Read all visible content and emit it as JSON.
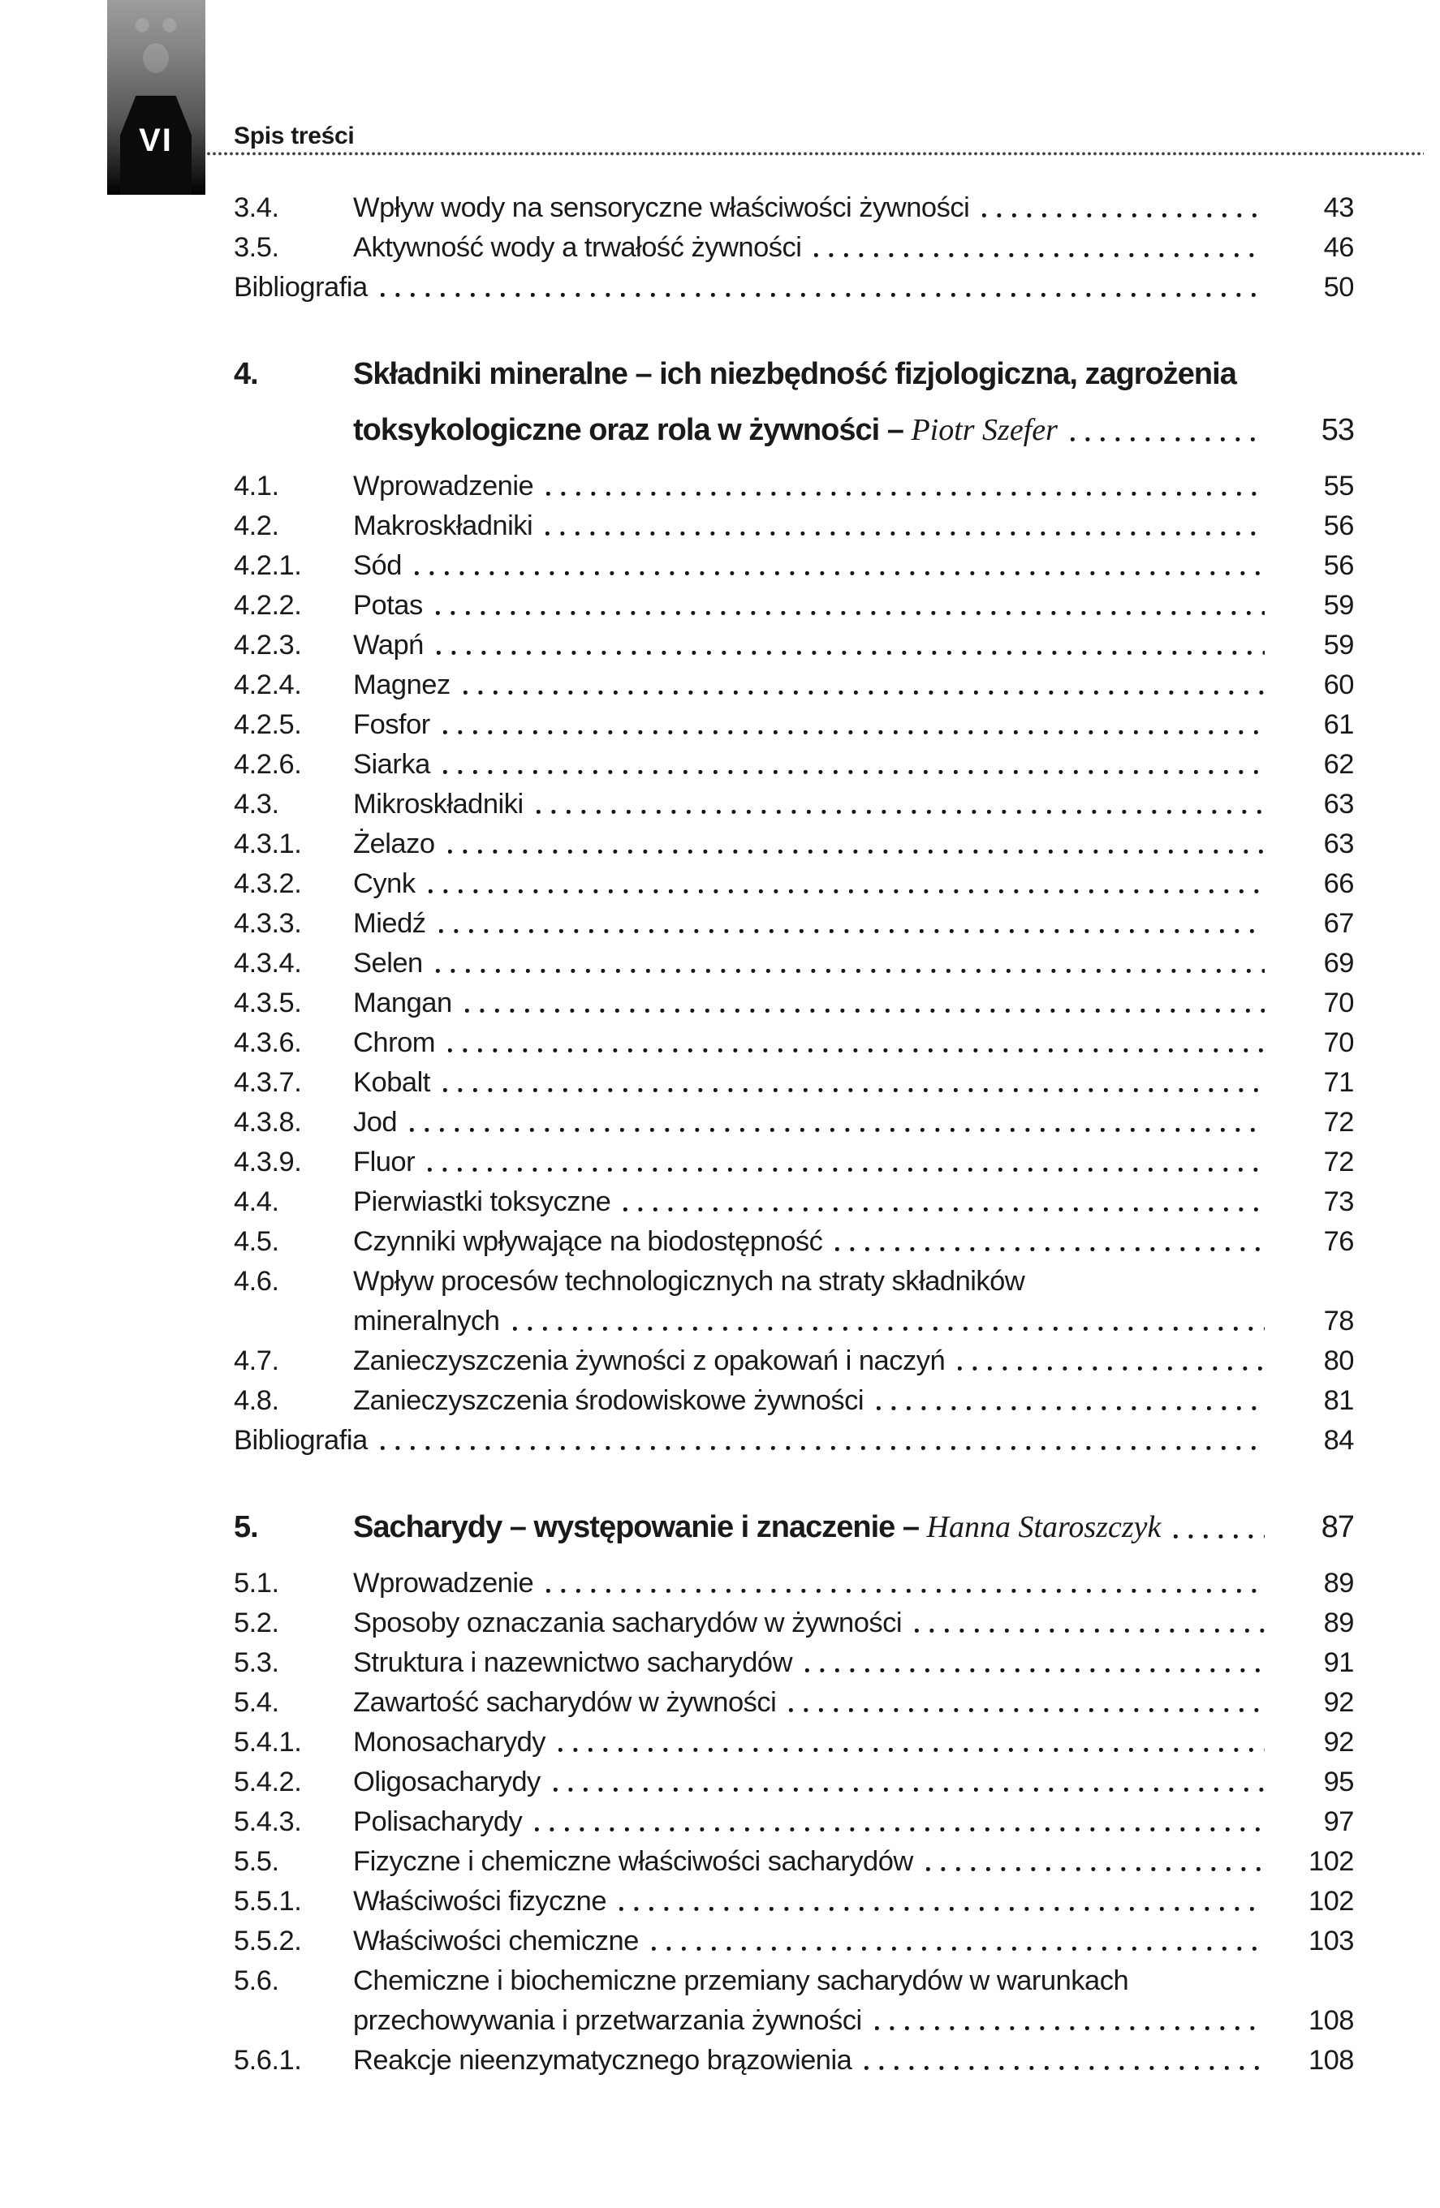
{
  "page": {
    "tab_number": "VI",
    "header_title": "Spis treści"
  },
  "toc": {
    "sections": [
      {
        "type": "entries",
        "rows": [
          {
            "num": "3.4.",
            "title": "Wpływ wody na sensoryczne właściwości żywności",
            "page": "43"
          },
          {
            "num": "3.5.",
            "title": "Aktywność wody a trwałość żywności",
            "page": "46"
          },
          {
            "flush": true,
            "title": "Bibliografia",
            "page": "50"
          }
        ]
      },
      {
        "type": "chapter",
        "num": "4.",
        "lines": [
          {
            "text": "Składniki mineralne – ich niezbędność fizjologiczna, zagrożenia"
          },
          {
            "text": "toksykologiczne oraz rola w żywności – ",
            "author": "Piotr Szefer",
            "page": "53"
          }
        ]
      },
      {
        "type": "entries",
        "rows": [
          {
            "num": "4.1.",
            "title": "Wprowadzenie",
            "page": "55"
          },
          {
            "num": "4.2.",
            "title": "Makroskładniki",
            "page": "56"
          },
          {
            "num": "4.2.1.",
            "title": "Sód",
            "page": "56"
          },
          {
            "num": "4.2.2.",
            "title": "Potas",
            "page": "59"
          },
          {
            "num": "4.2.3.",
            "title": "Wapń",
            "page": "59"
          },
          {
            "num": "4.2.4.",
            "title": "Magnez",
            "page": "60"
          },
          {
            "num": "4.2.5.",
            "title": "Fosfor",
            "page": "61"
          },
          {
            "num": "4.2.6.",
            "title": "Siarka",
            "page": "62"
          },
          {
            "num": "4.3.",
            "title": "Mikroskładniki",
            "page": "63"
          },
          {
            "num": "4.3.1.",
            "title": "Żelazo",
            "page": "63"
          },
          {
            "num": "4.3.2.",
            "title": "Cynk",
            "page": "66"
          },
          {
            "num": "4.3.3.",
            "title": "Miedź",
            "page": "67"
          },
          {
            "num": "4.3.4.",
            "title": "Selen",
            "page": "69"
          },
          {
            "num": "4.3.5.",
            "title": "Mangan",
            "page": "70"
          },
          {
            "num": "4.3.6.",
            "title": "Chrom",
            "page": "70"
          },
          {
            "num": "4.3.7.",
            "title": "Kobalt",
            "page": "71"
          },
          {
            "num": "4.3.8.",
            "title": "Jod",
            "page": "72"
          },
          {
            "num": "4.3.9.",
            "title": "Fluor",
            "page": "72"
          },
          {
            "num": "4.4.",
            "title": "Pierwiastki toksyczne",
            "page": "73"
          },
          {
            "num": "4.5.",
            "title": "Czynniki wpływające na biodostępność",
            "page": "76"
          },
          {
            "num": "4.6.",
            "title": "Wpływ procesów technologicznych na straty składników",
            "line2": "mineralnych",
            "page": "78"
          },
          {
            "num": "4.7.",
            "title": "Zanieczyszczenia żywności z opakowań i naczyń",
            "page": "80"
          },
          {
            "num": "4.8.",
            "title": "Zanieczyszczenia środowiskowe żywności",
            "page": "81"
          },
          {
            "flush": true,
            "title": "Bibliografia",
            "page": "84"
          }
        ]
      },
      {
        "type": "chapter",
        "num": "5.",
        "lines": [
          {
            "text": "Sacharydy – występowanie i znaczenie – ",
            "author": "Hanna Staroszczyk",
            "page": "87"
          }
        ]
      },
      {
        "type": "entries",
        "rows": [
          {
            "num": "5.1.",
            "title": "Wprowadzenie",
            "page": "89"
          },
          {
            "num": "5.2.",
            "title": "Sposoby oznaczania sacharydów w żywności",
            "page": "89"
          },
          {
            "num": "5.3.",
            "title": "Struktura i nazewnictwo sacharydów",
            "page": "91"
          },
          {
            "num": "5.4.",
            "title": "Zawartość sacharydów w żywności",
            "page": "92"
          },
          {
            "num": "5.4.1.",
            "title": "Monosacharydy",
            "page": "92"
          },
          {
            "num": "5.4.2.",
            "title": "Oligosacharydy",
            "page": "95"
          },
          {
            "num": "5.4.3.",
            "title": "Polisacharydy",
            "page": "97"
          },
          {
            "num": "5.5.",
            "title": "Fizyczne i chemiczne właściwości sacharydów",
            "page": "102"
          },
          {
            "num": "5.5.1.",
            "title": "Właściwości fizyczne",
            "page": "102"
          },
          {
            "num": "5.5.2.",
            "title": "Właściwości chemiczne",
            "page": "103"
          },
          {
            "num": "5.6.",
            "title": "Chemiczne i biochemiczne przemiany sacharydów w warunkach",
            "line2": "przechowywania i przetwarzania żywności",
            "page": "108"
          },
          {
            "num": "5.6.1.",
            "title": "Reakcje nieenzymatycznego brązowienia",
            "page": "108"
          }
        ]
      }
    ]
  }
}
